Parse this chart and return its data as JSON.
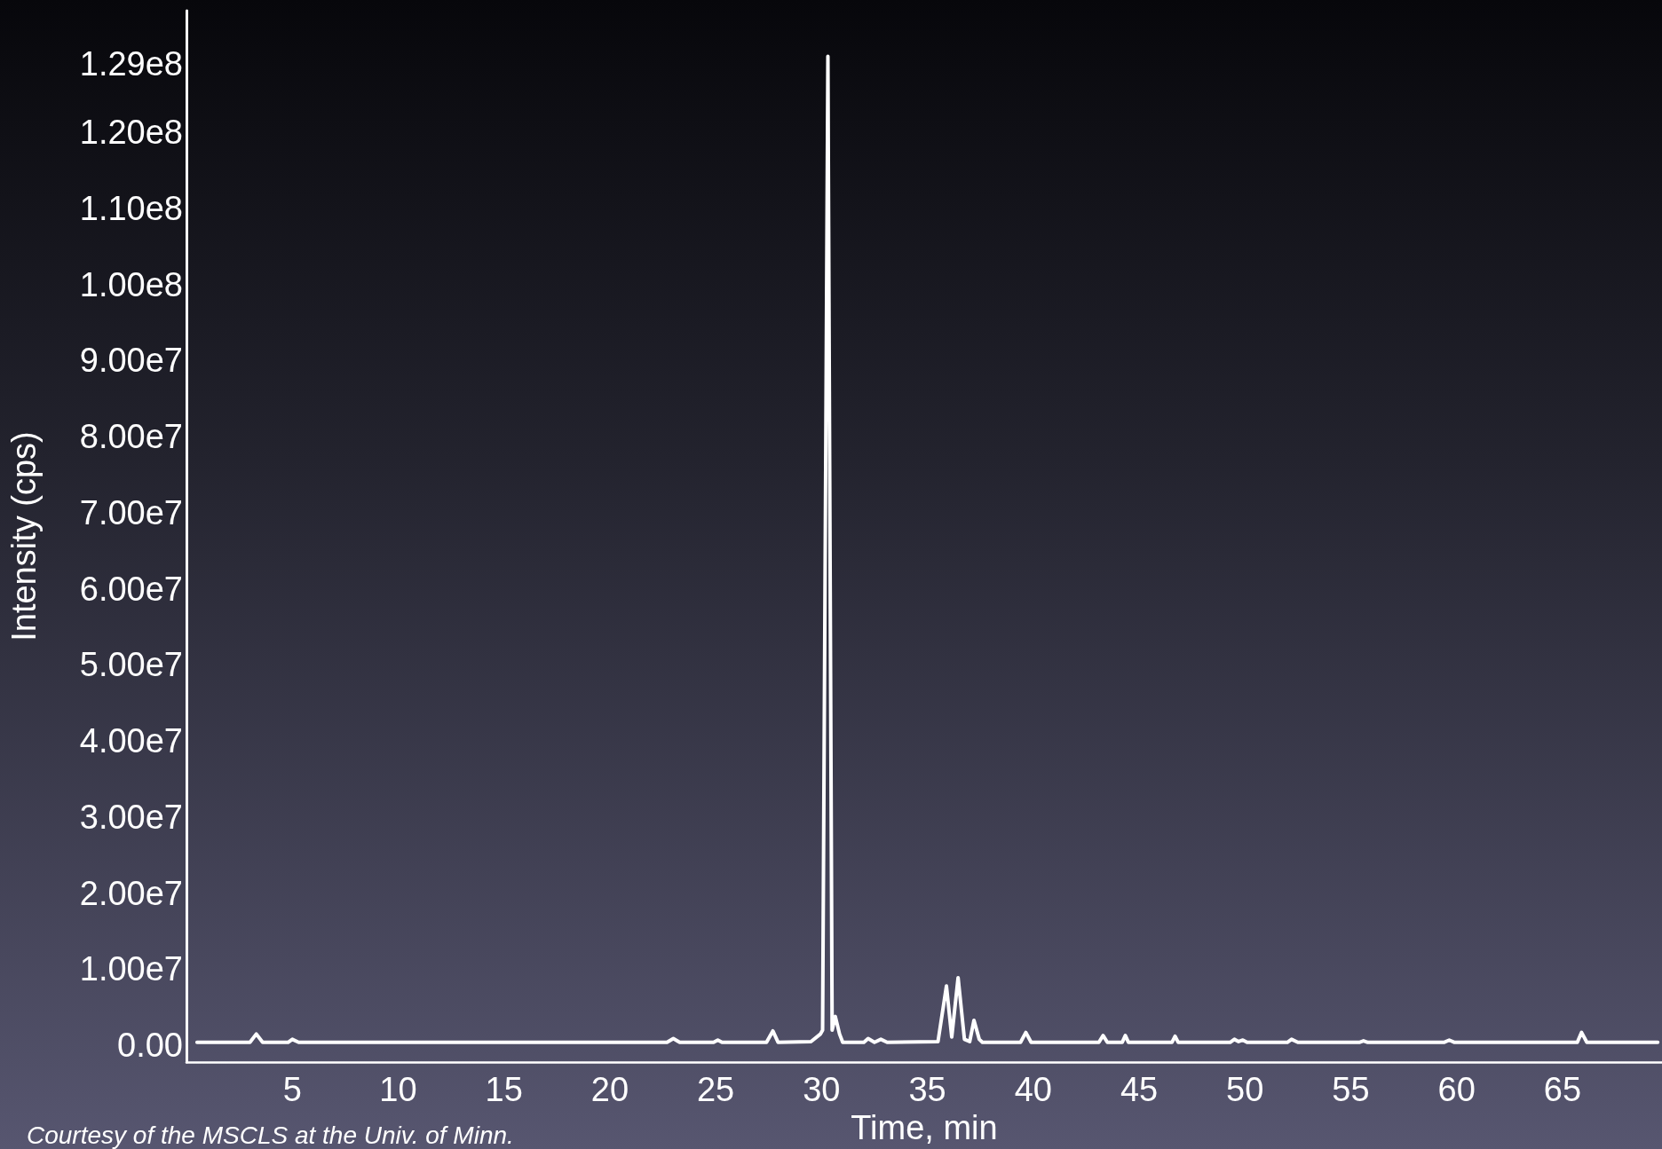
{
  "chart_data": {
    "type": "line",
    "xlabel": "Time, min",
    "ylabel": "Intensity (cps)",
    "annotations": [
      "Courtesy of the MSCLS at the Univ. of Minn."
    ],
    "xlim": [
      0,
      69.7
    ],
    "xticks": [
      5,
      10,
      15,
      20,
      25,
      30,
      35,
      40,
      45,
      50,
      55,
      60,
      65
    ],
    "ylim": [
      -2200000,
      136000000
    ],
    "yticks": [
      {
        "value": 0,
        "label": "0.00"
      },
      {
        "value": 10000000,
        "label": "1.00e7"
      },
      {
        "value": 20000000,
        "label": "2.00e7"
      },
      {
        "value": 30000000,
        "label": "3.00e7"
      },
      {
        "value": 40000000,
        "label": "4.00e7"
      },
      {
        "value": 50000000,
        "label": "5.00e7"
      },
      {
        "value": 60000000,
        "label": "6.00e7"
      },
      {
        "value": 70000000,
        "label": "7.00e7"
      },
      {
        "value": 80000000,
        "label": "8.00e7"
      },
      {
        "value": 90000000,
        "label": "9.00e7"
      },
      {
        "value": 100000000,
        "label": "1.00e8"
      },
      {
        "value": 110000000,
        "label": "1.10e8"
      },
      {
        "value": 120000000,
        "label": "1.20e8"
      },
      {
        "value": 129000000,
        "label": "1.29e8"
      }
    ],
    "grid": false,
    "marker": "none",
    "line_style": "solid",
    "series": [
      {
        "color": "#ffffff",
        "x": [
          0.5,
          3.0,
          3.3,
          3.6,
          4.8,
          5.0,
          5.3,
          22.7,
          23.0,
          23.3,
          24.9,
          25.1,
          25.3,
          27.4,
          27.7,
          27.95,
          29.5,
          29.95,
          30.05,
          30.3,
          30.5,
          30.65,
          30.85,
          31.0,
          32.0,
          32.2,
          32.5,
          32.8,
          33.1,
          35.5,
          35.9,
          36.15,
          36.45,
          36.75,
          37.0,
          37.2,
          37.45,
          37.6,
          39.4,
          39.65,
          39.9,
          43.1,
          43.3,
          43.5,
          44.2,
          44.35,
          44.5,
          46.55,
          46.7,
          46.85,
          49.3,
          49.5,
          49.7,
          49.9,
          50.1,
          52.0,
          52.2,
          52.5,
          55.4,
          55.6,
          55.8,
          59.4,
          59.65,
          59.9,
          65.7,
          65.9,
          66.15,
          69.5
        ],
        "values": [
          400000,
          400000,
          1500000,
          400000,
          400000,
          800000,
          400000,
          400000,
          900000,
          400000,
          400000,
          700000,
          400000,
          400000,
          1900000,
          400000,
          500000,
          1500000,
          2000000,
          130000000,
          2000000,
          3800000,
          1500000,
          400000,
          400000,
          900000,
          400000,
          800000,
          400000,
          500000,
          7800000,
          1100000,
          8900000,
          800000,
          500000,
          3300000,
          800000,
          400000,
          400000,
          1700000,
          400000,
          400000,
          1300000,
          400000,
          400000,
          1300000,
          400000,
          400000,
          1200000,
          400000,
          400000,
          800000,
          500000,
          700000,
          400000,
          400000,
          800000,
          400000,
          400000,
          600000,
          400000,
          400000,
          700000,
          400000,
          400000,
          1700000,
          400000,
          400000
        ]
      }
    ]
  }
}
